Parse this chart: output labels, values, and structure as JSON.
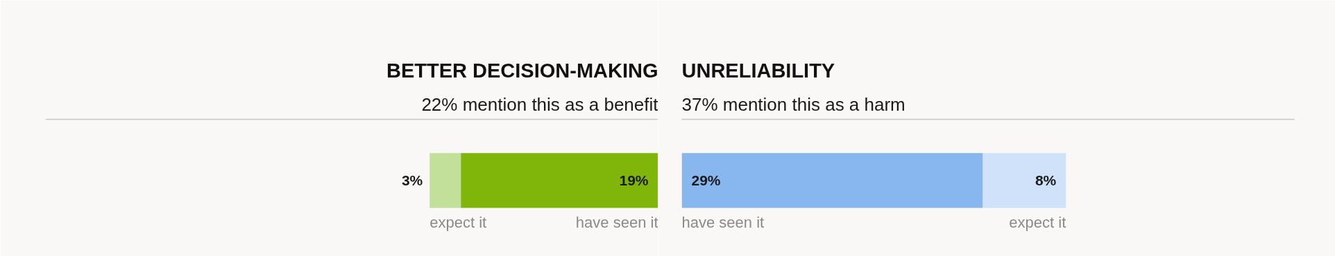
{
  "chart_data": [
    {
      "type": "bar",
      "orientation": "horizontal",
      "stacked": true,
      "title": "BETTER DECISION-MAKING",
      "subtitle": "22% mention this as a benefit",
      "categories": [
        null
      ],
      "xlim": [
        59,
        0
      ],
      "tick_labels": false,
      "grid": false,
      "legend": false,
      "series": [
        {
          "name": "have seen it",
          "color": "#80b60a",
          "values": [
            19
          ],
          "value_labels": [
            "19%"
          ]
        },
        {
          "name": "expect it",
          "color": "#c2e09a",
          "values": [
            3
          ],
          "value_labels": [
            "3%"
          ]
        }
      ]
    },
    {
      "type": "bar",
      "orientation": "horizontal",
      "stacked": true,
      "title": "UNRELIABILITY",
      "subtitle": "37% mention this as a harm",
      "categories": [
        null
      ],
      "xlim": [
        0,
        59
      ],
      "tick_labels": false,
      "grid": false,
      "legend": false,
      "series": [
        {
          "name": "have seen it",
          "color": "#88b6ee",
          "values": [
            29
          ],
          "value_labels": [
            "29%"
          ]
        },
        {
          "name": "expect it",
          "color": "#cfe2fa",
          "values": [
            8
          ],
          "value_labels": [
            "8%"
          ]
        }
      ]
    }
  ]
}
